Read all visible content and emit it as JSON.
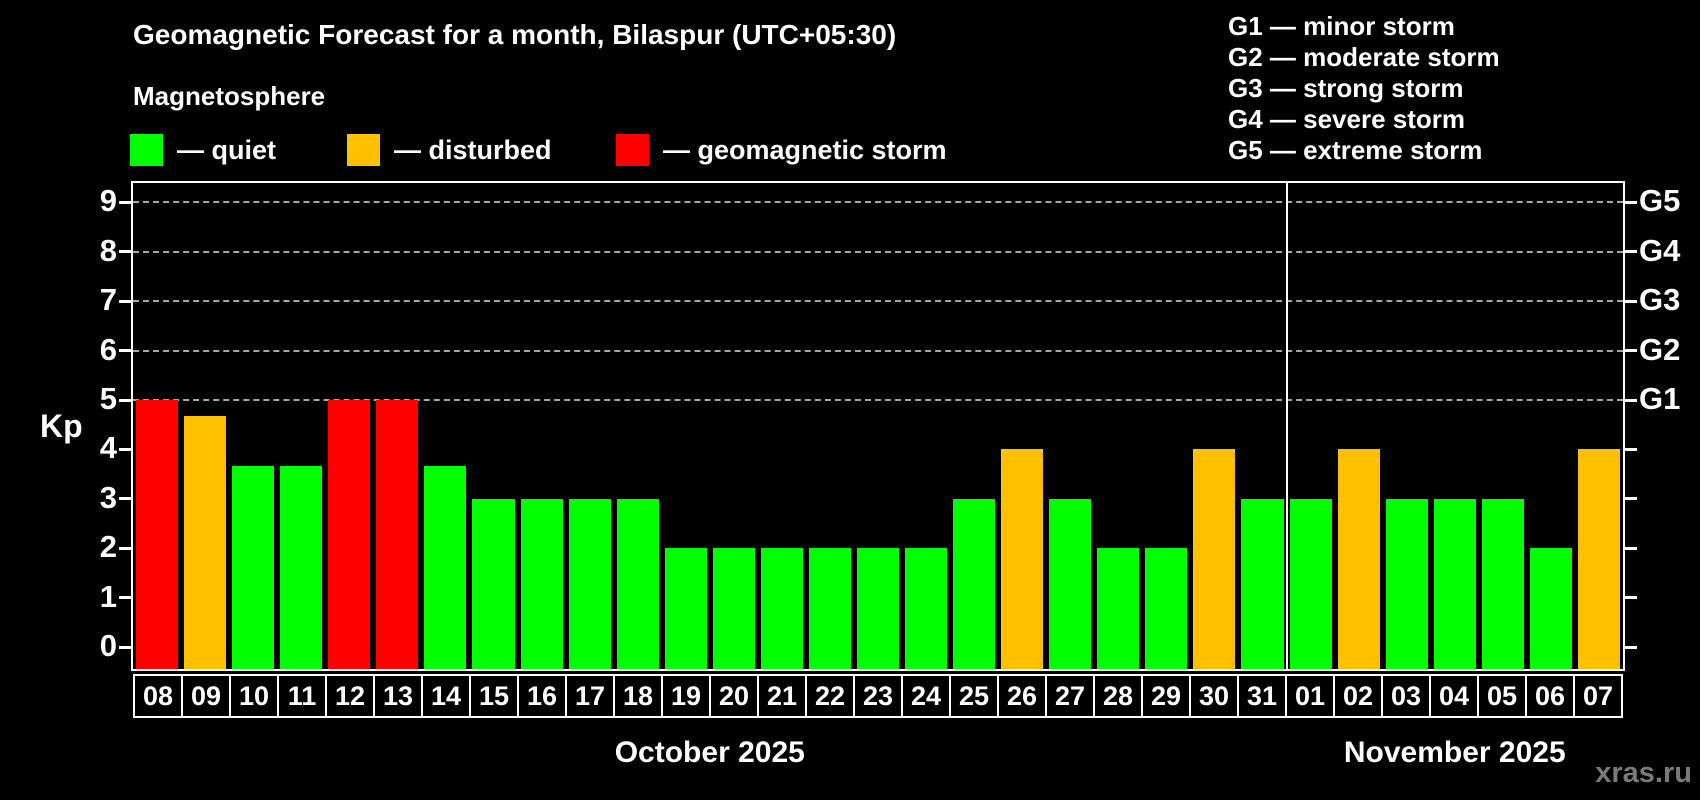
{
  "title": "Geomagnetic Forecast for a month, Bilaspur (UTC+05:30)",
  "subtitle": "Magnetosphere",
  "watermark": "xras.ru",
  "colors": {
    "quiet": "#00ff00",
    "disturbed": "#ffc000",
    "storm": "#ff0000",
    "grid": "#a6a6a6",
    "watermark_text": "#7a7a7a",
    "background": "#000000",
    "text": "#ffffff"
  },
  "legend": [
    {
      "key": "quiet",
      "label": "— quiet"
    },
    {
      "key": "disturbed",
      "label": "— disturbed"
    },
    {
      "key": "storm",
      "label": "— geomagnetic storm"
    }
  ],
  "g_scale_legend": [
    "G1 — minor storm",
    "G2 — moderate storm",
    "G3 — strong storm",
    "G4 — severe storm",
    "G5 — extreme storm"
  ],
  "y_axis": {
    "label": "Kp",
    "ticks": [
      0,
      1,
      2,
      3,
      4,
      5,
      6,
      7,
      8,
      9
    ]
  },
  "right_axis": {
    "labels": [
      {
        "text": "G1",
        "value": 5
      },
      {
        "text": "G2",
        "value": 6
      },
      {
        "text": "G3",
        "value": 7
      },
      {
        "text": "G4",
        "value": 8
      },
      {
        "text": "G5",
        "value": 9
      }
    ]
  },
  "chart_data": {
    "type": "bar",
    "title": "Geomagnetic Forecast for a month, Bilaspur (UTC+05:30)",
    "xlabel": "",
    "ylabel": "Kp",
    "ylim": [
      0,
      9
    ],
    "gridlines": [
      5,
      6,
      7,
      8,
      9
    ],
    "legend_position": "top-left",
    "months": [
      {
        "label": "October 2025",
        "days": 24
      },
      {
        "label": "November 2025",
        "days": 7
      }
    ],
    "categories": [
      "08",
      "09",
      "10",
      "11",
      "12",
      "13",
      "14",
      "15",
      "16",
      "17",
      "18",
      "19",
      "20",
      "21",
      "22",
      "23",
      "24",
      "25",
      "26",
      "27",
      "28",
      "29",
      "30",
      "31",
      "01",
      "02",
      "03",
      "04",
      "05",
      "06",
      "07"
    ],
    "values": [
      5,
      4.67,
      3.67,
      3.67,
      5,
      5,
      3.67,
      3,
      3,
      3,
      3,
      2,
      2,
      2,
      2,
      2,
      2,
      3,
      4,
      3,
      2,
      2,
      4,
      3,
      3,
      4,
      3,
      3,
      3,
      2,
      4
    ],
    "statuses": [
      "storm",
      "disturbed",
      "quiet",
      "quiet",
      "storm",
      "storm",
      "quiet",
      "quiet",
      "quiet",
      "quiet",
      "quiet",
      "quiet",
      "quiet",
      "quiet",
      "quiet",
      "quiet",
      "quiet",
      "quiet",
      "disturbed",
      "quiet",
      "quiet",
      "quiet",
      "disturbed",
      "quiet",
      "quiet",
      "disturbed",
      "quiet",
      "quiet",
      "quiet",
      "quiet",
      "disturbed"
    ]
  }
}
